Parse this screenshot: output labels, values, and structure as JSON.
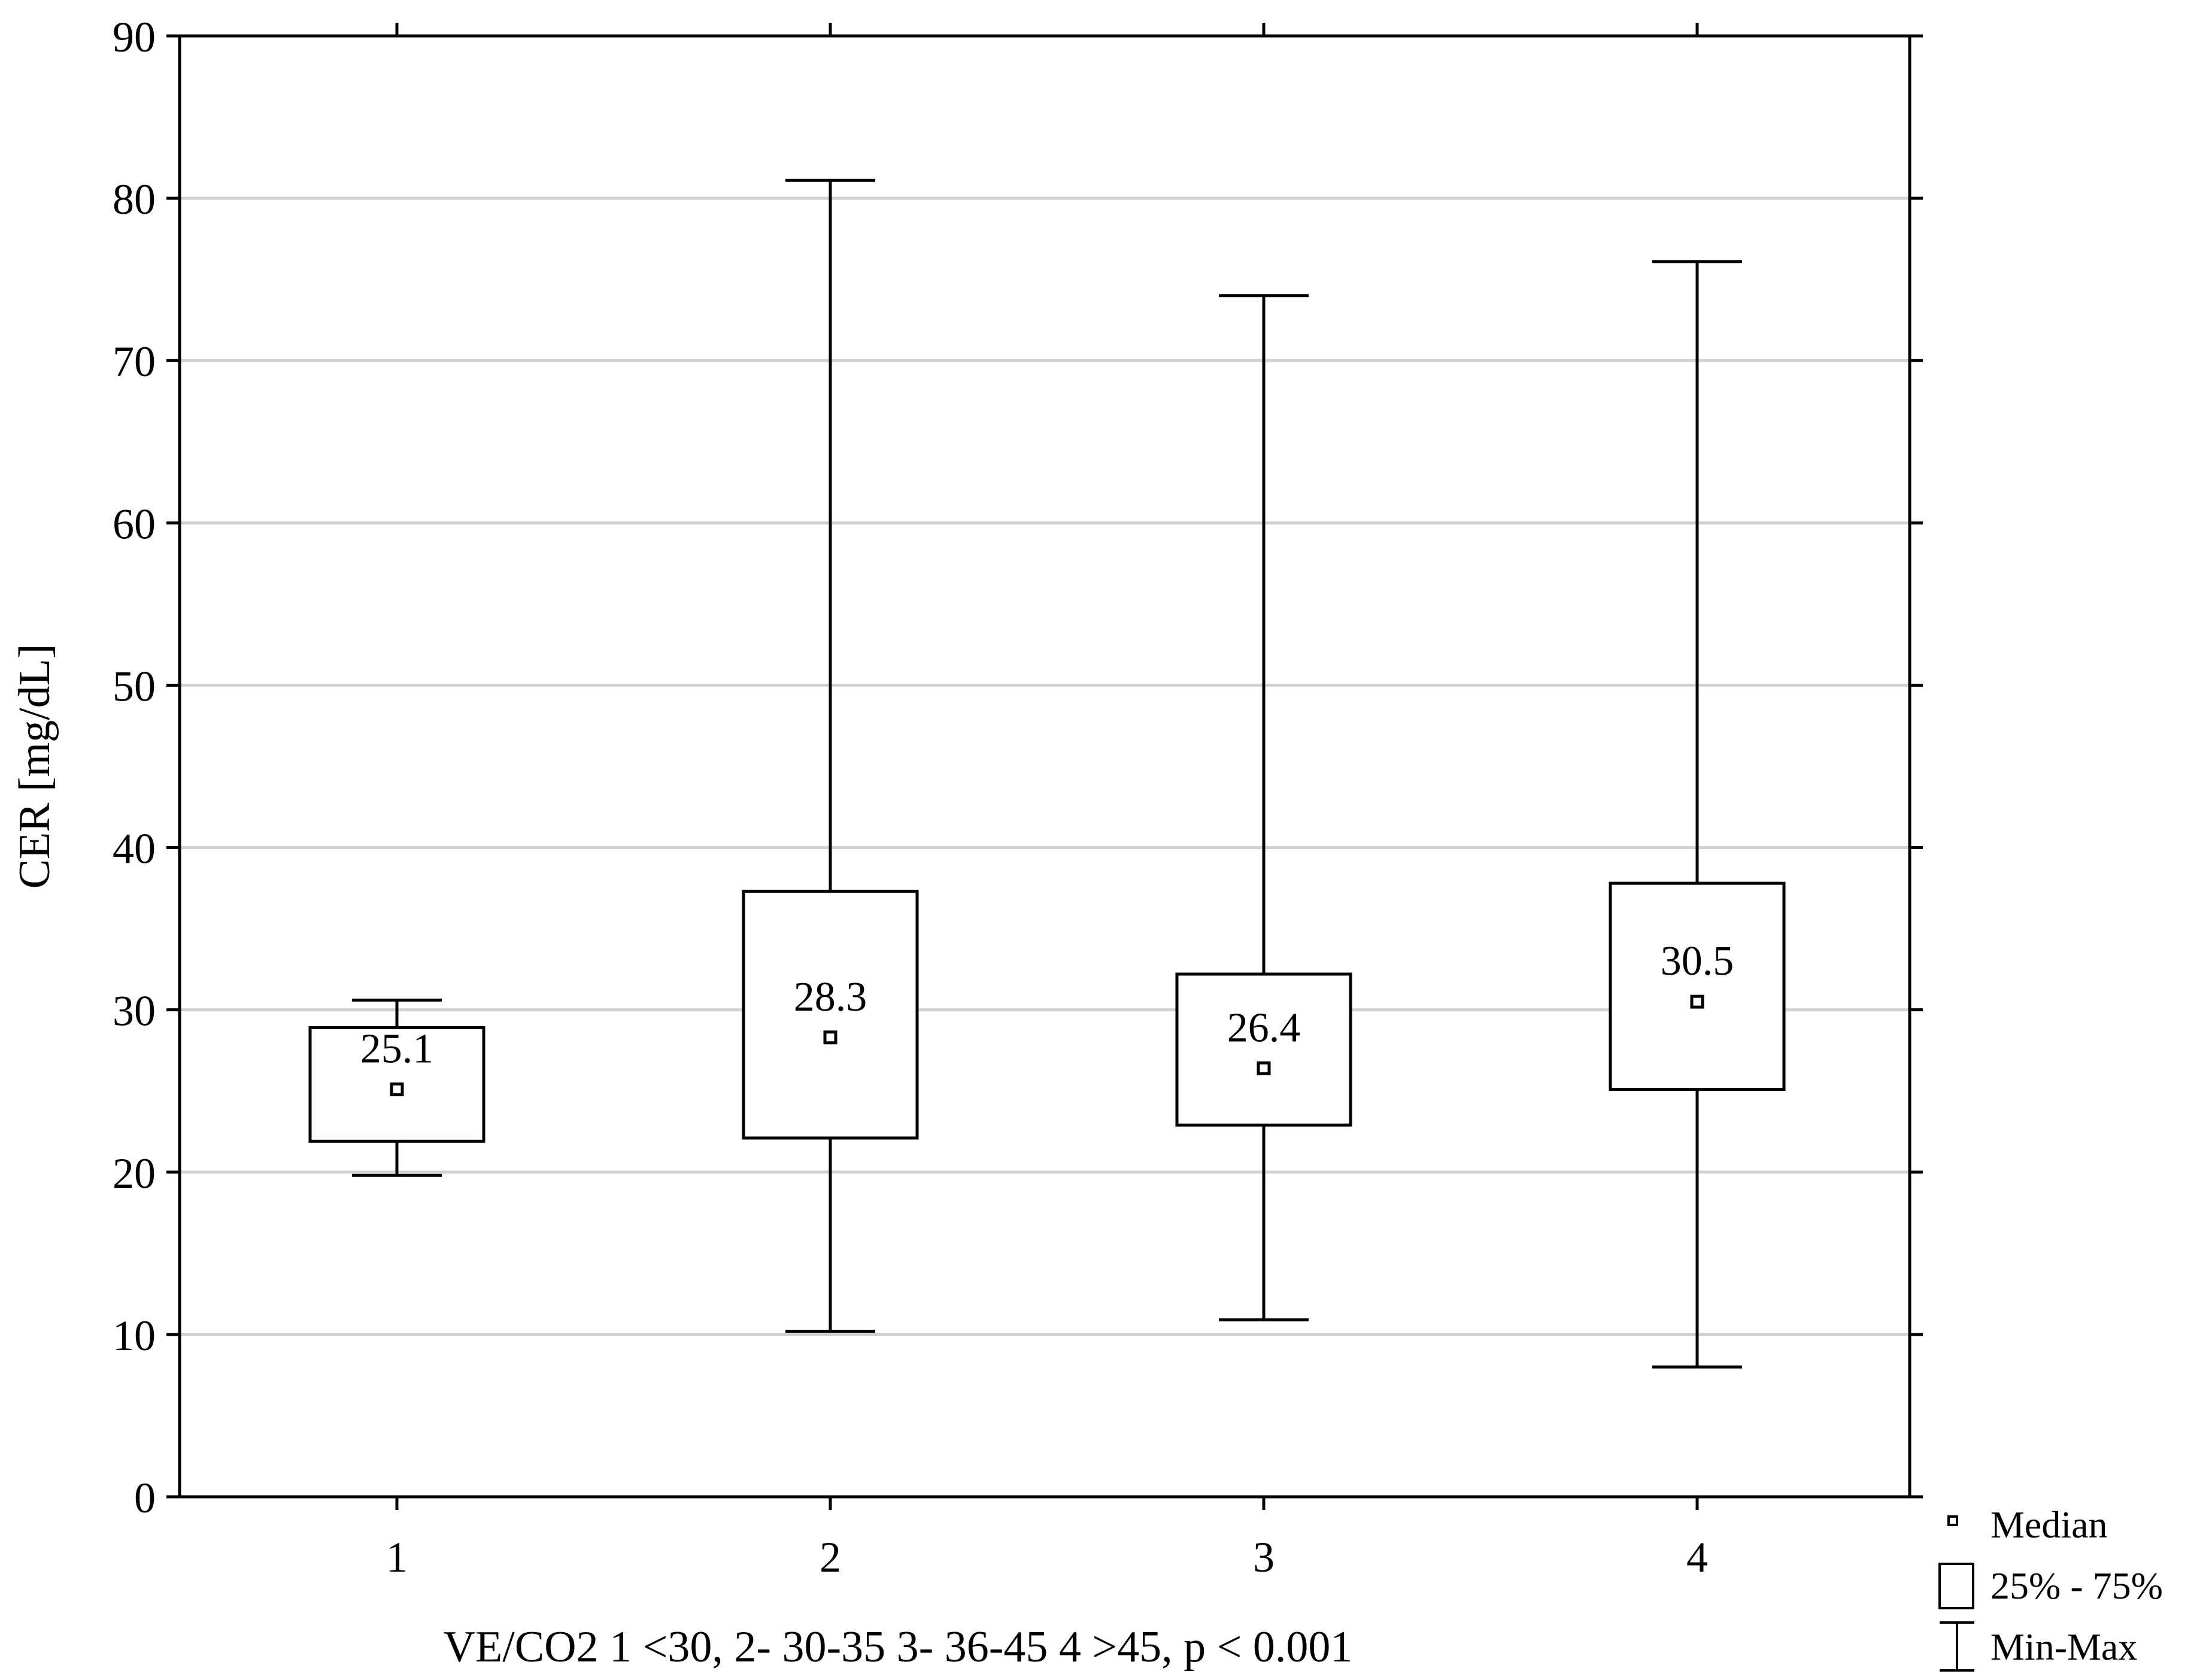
{
  "chart_data": {
    "type": "box",
    "xlabel": "VE/CO2 1 <30, 2- 30-35 3- 36-45  4 >45, p < 0.001",
    "ylabel": "CER [mg/dL]",
    "ylim": [
      0,
      90
    ],
    "yticks": [
      "0",
      "10",
      "20",
      "30",
      "40",
      "50",
      "60",
      "70",
      "80",
      "90"
    ],
    "grid": "horizontal",
    "legend_position": "bottom-right outside plot",
    "categories": [
      "1",
      "2",
      "3",
      "4"
    ],
    "boxes": [
      {
        "category": "1",
        "min": 19.8,
        "q1": 21.9,
        "median": 25.1,
        "q3": 28.9,
        "max": 30.6,
        "label": "25.1"
      },
      {
        "category": "2",
        "min": 10.2,
        "q1": 22.1,
        "median": 28.3,
        "q3": 37.3,
        "max": 81.1,
        "label": "28.3"
      },
      {
        "category": "3",
        "min": 10.9,
        "q1": 22.9,
        "median": 26.4,
        "q3": 32.2,
        "max": 74.0,
        "label": "26.4"
      },
      {
        "category": "4",
        "min": 8.0,
        "q1": 25.1,
        "median": 30.5,
        "q3": 37.8,
        "max": 76.1,
        "label": "30.5"
      }
    ],
    "legend": {
      "median": "Median",
      "box": "25% - 75%",
      "whisker": "Min-Max"
    },
    "colors": {
      "line": "#000000",
      "grid": "#d0d0d0",
      "background": "#ffffff"
    }
  }
}
